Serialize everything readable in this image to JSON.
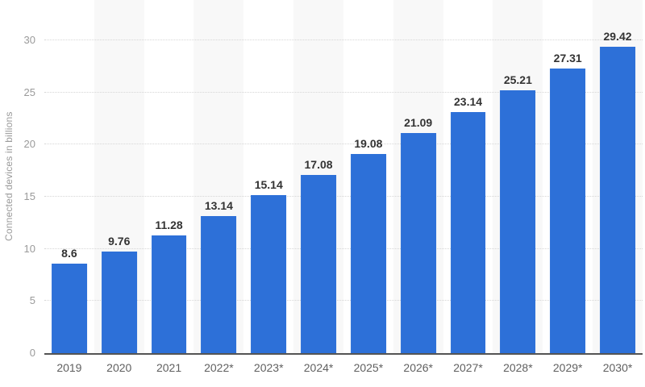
{
  "chart_data": {
    "type": "bar",
    "title": "",
    "xlabel": "",
    "ylabel": "Connected devices in billions",
    "categories": [
      "2019",
      "2020",
      "2021",
      "2022*",
      "2023*",
      "2024*",
      "2025*",
      "2026*",
      "2027*",
      "2028*",
      "2029*",
      "2030*"
    ],
    "values": [
      8.6,
      9.76,
      11.28,
      13.14,
      15.14,
      17.08,
      19.08,
      21.09,
      23.14,
      25.21,
      27.31,
      29.42
    ],
    "yticks": [
      0,
      5,
      10,
      15,
      20,
      25,
      30
    ],
    "ylim": [
      0,
      30
    ],
    "grid": "horizontal-dotted",
    "legend": "none",
    "band_pattern": "alternating vertical bands on even-numbered year columns",
    "colors": {
      "bar": "#2d70d8",
      "band": "#f8f8f8",
      "gridline": "#d6d6d6",
      "axis_line": "#545454",
      "tick_label": "#9a9a9a",
      "x_label": "#606060",
      "value_label": "#333333",
      "y_axis_title": "#9a9a9a",
      "background": "#ffffff"
    }
  }
}
